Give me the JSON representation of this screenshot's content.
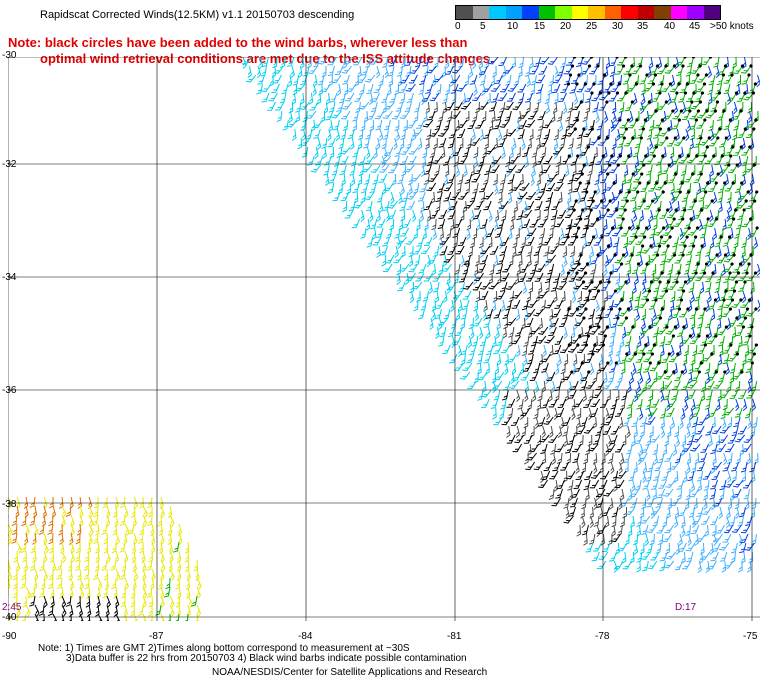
{
  "title": "Rapidscat Corrected Winds(12.5KM) v1.1 20150703 descending",
  "note": {
    "line1": "Note: black circles have been added to the wind barbs, wherever less than",
    "line2": "optimal wind retrieval conditions are met due to the ISS attitude changes."
  },
  "speed_scale": {
    "labels": [
      "0",
      "5",
      "10",
      "15",
      "20",
      "25",
      "30",
      "35",
      "40",
      "45",
      ">50 knots"
    ],
    "colors": [
      "#505050",
      "#a0a0a0",
      "#00c8ff",
      "#00a0ff",
      "#0040ff",
      "#00c000",
      "#80ff00",
      "#ffff00",
      "#ffc000",
      "#ff6000",
      "#ff0000",
      "#c00000",
      "#804000",
      "#ff00ff",
      "#a000ff",
      "#500080"
    ]
  },
  "map": {
    "lat_labels": [
      "-30",
      "-32",
      "-34",
      "-36",
      "-38",
      "-40"
    ],
    "lon_labels": [
      "-90",
      "-87",
      "-84",
      "-81",
      "-78",
      "-75"
    ],
    "center_marker": "0",
    "colors": {
      "grid": "#000000",
      "swath_gray": "#505050",
      "swath_black": "#000000",
      "cyan": "#00d0f0",
      "light_blue": "#40b0ff",
      "blue": "#0040e0",
      "dark_blue": "#002080",
      "green": "#00b000",
      "yellow": "#e8e800",
      "orange": "#e07000",
      "brown": "#804000"
    }
  },
  "times": {
    "left": "2:45",
    "right": "D:17"
  },
  "footer": {
    "note1": "Note: 1) Times are GMT 2)Times along bottom correspond to measurement at ~30S",
    "note2": "3)Data buffer is 22 hrs from 20150703 4) Black wind barbs indicate possible contamination",
    "credit": "NOAA/NESDIS/Center for Satellite Applications and Research"
  }
}
